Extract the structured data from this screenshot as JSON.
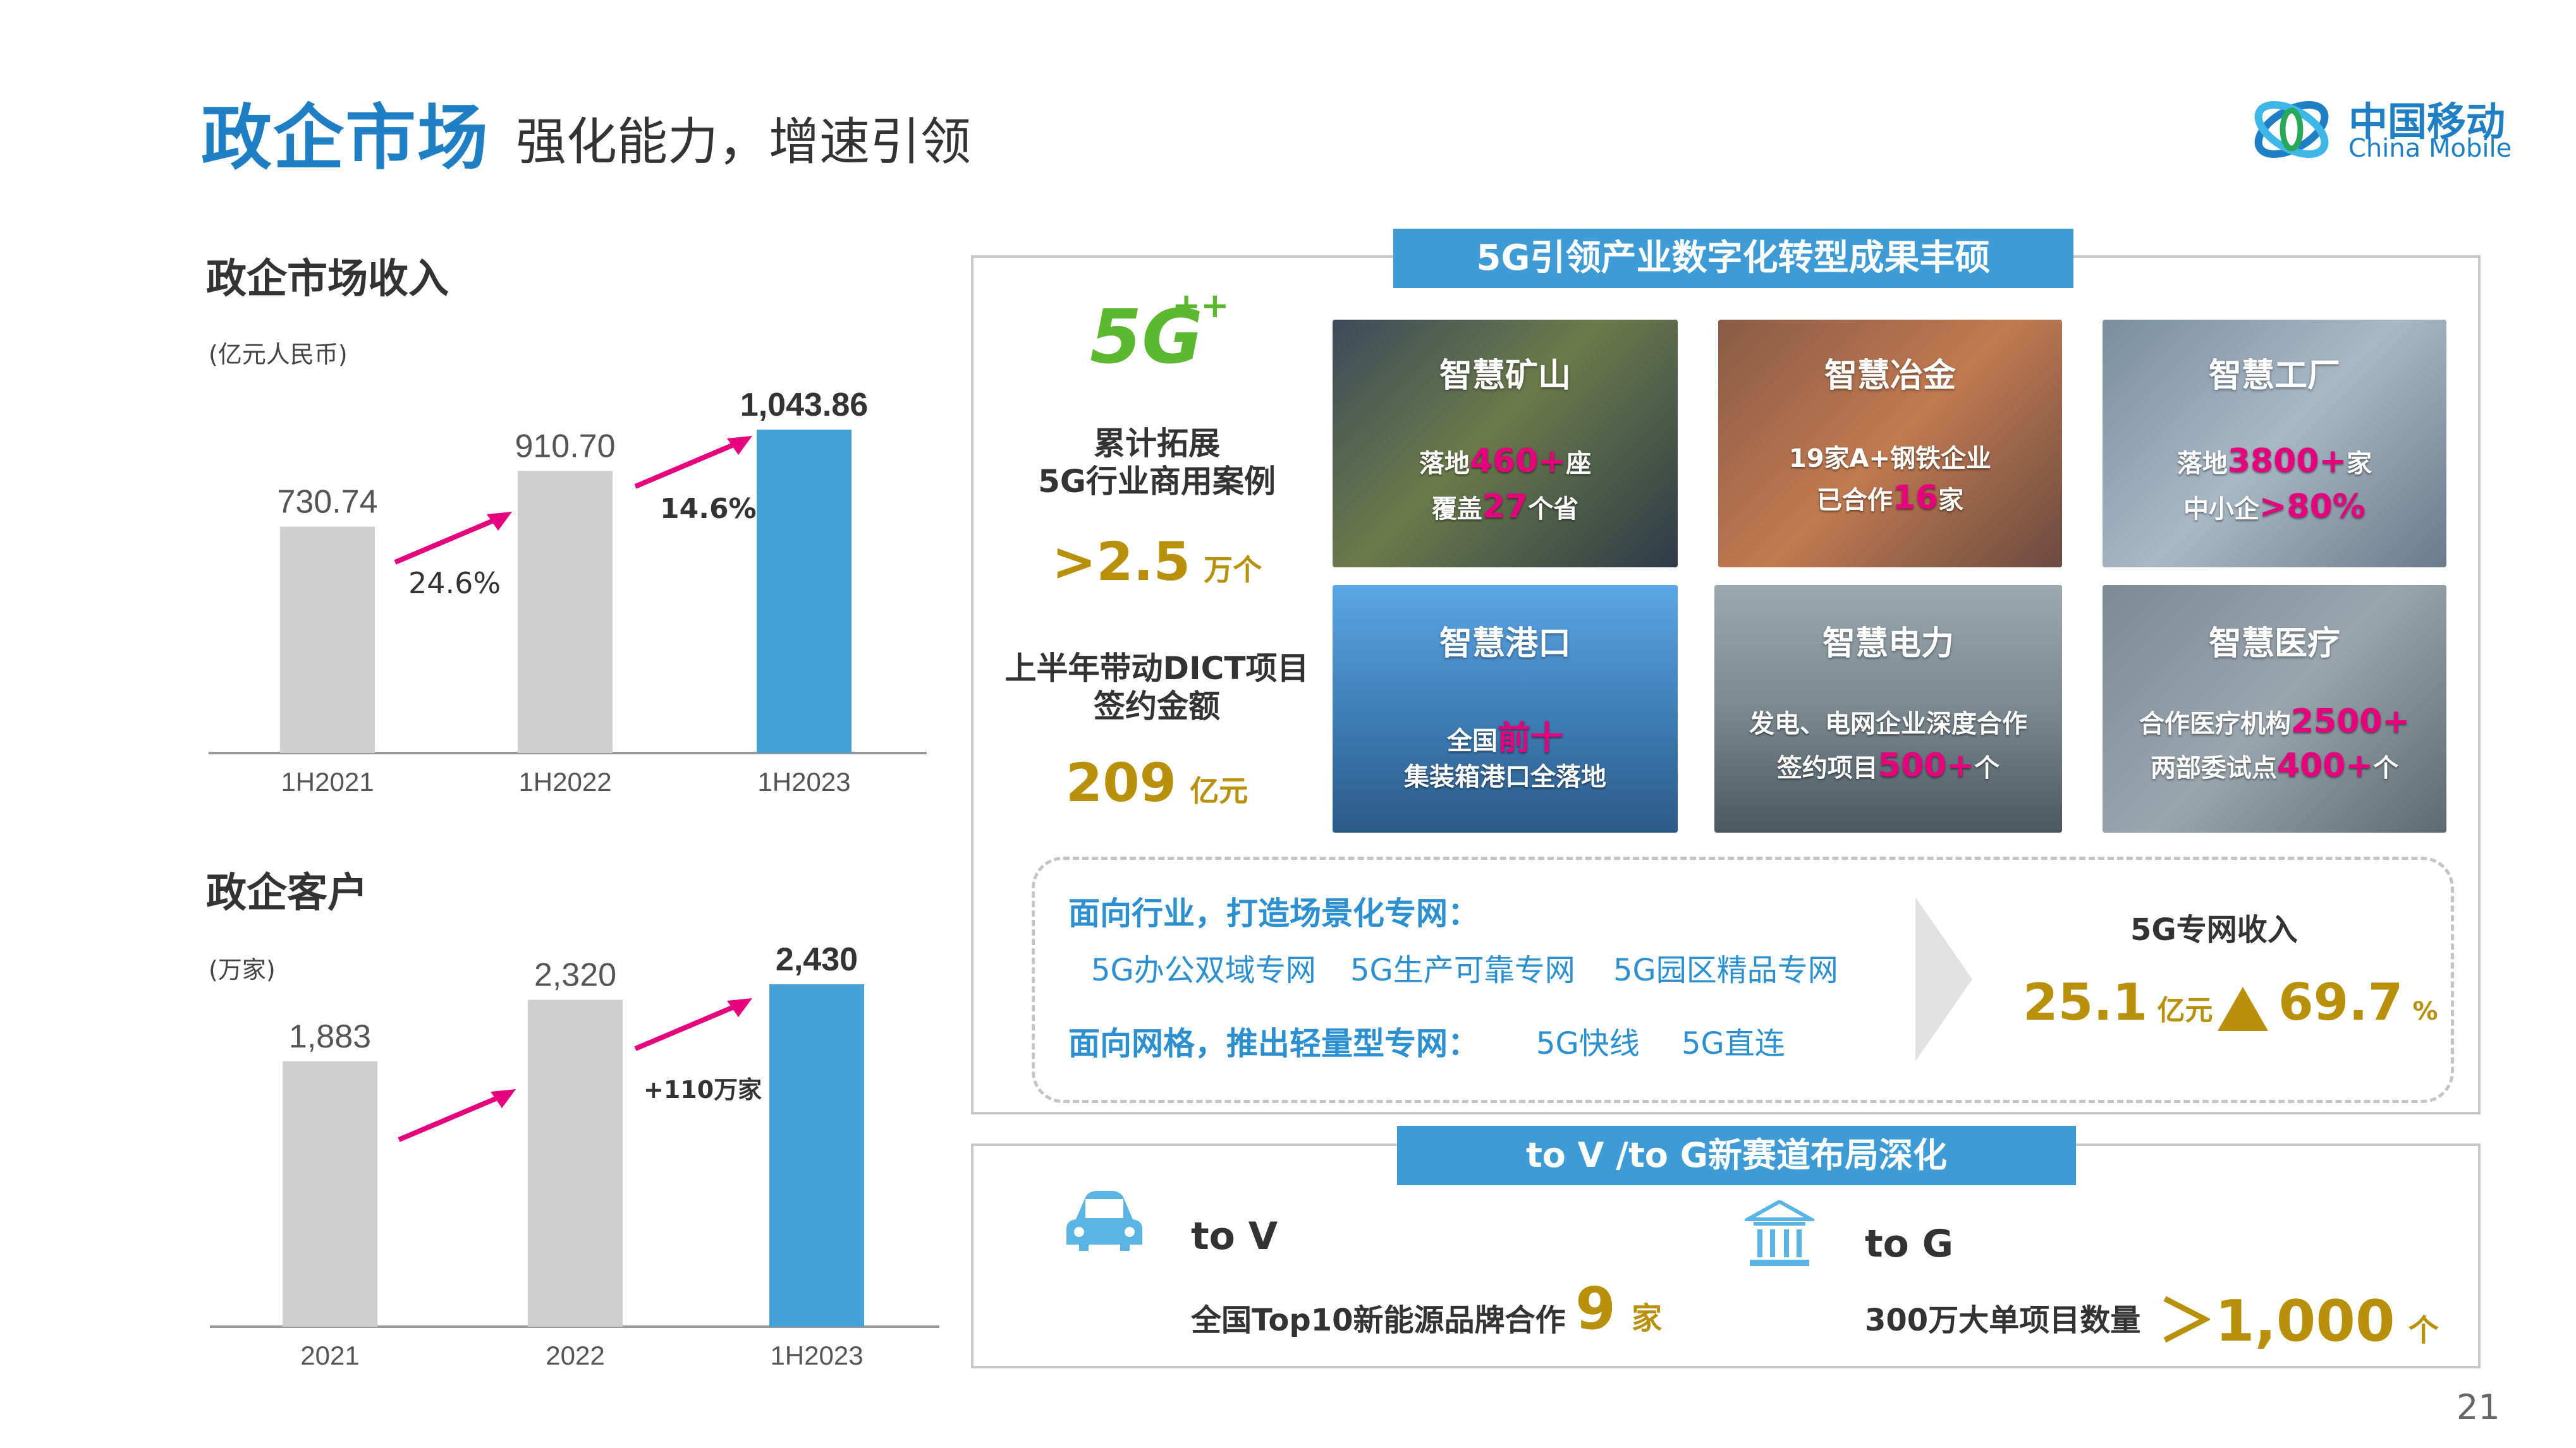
{
  "header": {
    "title": "政企市场",
    "subtitle": "强化能力，增速引领",
    "logo_cn": "中国移动",
    "logo_en": "China Mobile"
  },
  "revenue": {
    "title": "政企市场收入",
    "unit": "(亿元人民币)",
    "growth_1": "24.6%",
    "growth_2": "14.6%",
    "chart_data": {
      "type": "bar",
      "categories": [
        "1H2021",
        "1H2022",
        "1H2023"
      ],
      "values": [
        730.74,
        910.7,
        1043.86
      ],
      "value_labels": [
        "730.74",
        "910.70",
        "1,043.86"
      ],
      "colors": [
        "#cfcfcf",
        "#cfcfcf",
        "#44a0d9"
      ]
    }
  },
  "customers": {
    "title": "政企客户",
    "unit": "(万家)",
    "growth_label": "+110万家",
    "chart_data": {
      "type": "bar",
      "categories": [
        "2021",
        "2022",
        "1H2023"
      ],
      "values": [
        1883,
        2320,
        2430
      ],
      "value_labels": [
        "1,883",
        "2,320",
        "2,430"
      ],
      "colors": [
        "#cfcfcf",
        "#cfcfcf",
        "#44a0d9"
      ]
    }
  },
  "digital": {
    "banner": "5G引领产业数字化转型成果丰硕",
    "logo_text": "5G",
    "logo_plus": "++",
    "stat1_label_1": "累计拓展",
    "stat1_label_2": "5G行业商用案例",
    "stat1_value": ">2.5",
    "stat1_unit": "万个",
    "stat2_label_1": "上半年带动DICT项目",
    "stat2_label_2": "签约金额",
    "stat2_value": "209",
    "stat2_unit": "亿元",
    "tiles": [
      {
        "title": "智慧矿山",
        "l1a": "落地",
        "l1b": "460+",
        "l1c": "座",
        "l2a": "覆盖",
        "l2b": "27",
        "l2c": "个省"
      },
      {
        "title": "智慧冶金",
        "l1a": "19家A+钢铁企业",
        "l1b": "",
        "l1c": "",
        "l2a": "已合作",
        "l2b": "16",
        "l2c": "家"
      },
      {
        "title": "智慧工厂",
        "l1a": "落地",
        "l1b": "3800+",
        "l1c": "家",
        "l2a": "中小企",
        "l2b": ">80%",
        "l2c": ""
      },
      {
        "title": "智慧港口",
        "l1a": "全国",
        "l1b": "前十",
        "l1c": "",
        "l2a": "集装箱港口全落地",
        "l2b": "",
        "l2c": ""
      },
      {
        "title": "智慧电力",
        "l1a": "发电、电网企业深度合作",
        "l1b": "",
        "l1c": "",
        "l2a": "签约项目",
        "l2b": "500+",
        "l2c": "个"
      },
      {
        "title": "智慧医疗",
        "l1a": "合作医疗机构",
        "l1b": "2500+",
        "l1c": "",
        "l2a": "两部委试点",
        "l2b": "400+",
        "l2c": "个"
      }
    ],
    "industry_heading": "面向行业，打造场景化专网：",
    "industry_items": [
      "5G办公双域专网",
      "5G生产可靠专网",
      "5G园区精品专网"
    ],
    "grid_heading": "面向网格，推出轻量型专网：",
    "grid_items": [
      "5G快线",
      "5G直连"
    ],
    "revenue_label": "5G专网收入",
    "revenue_value": "25.1",
    "revenue_unit": "亿元",
    "revenue_growth": "69.7",
    "revenue_growth_unit": "%"
  },
  "tovg": {
    "banner": "to V /to G新赛道布局深化",
    "v_title": "to V",
    "v_text": "全国Top10新能源品牌合作",
    "v_value": "9",
    "v_unit": "家",
    "g_title": "to G",
    "g_text": "300万大单项目数量",
    "g_value": "＞1,000",
    "g_unit": "个"
  },
  "page_number": "21"
}
